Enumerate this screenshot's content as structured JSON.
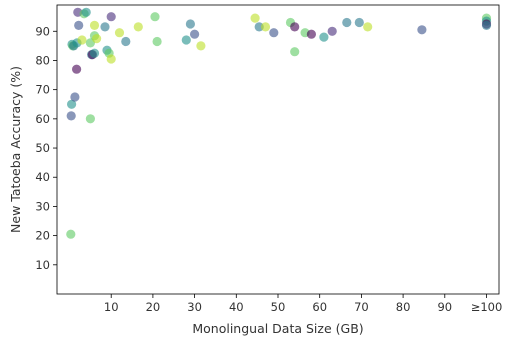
{
  "chart_data": {
    "type": "scatter",
    "title": "",
    "xlabel": "Monolingual Data Size (GB)",
    "ylabel": "New Tatoeba Accuracy (%)",
    "xlim": [
      -3,
      103
    ],
    "ylim": [
      0,
      99
    ],
    "grid": false,
    "x_ticks": [
      {
        "value": 10,
        "label": "10"
      },
      {
        "value": 20,
        "label": "20"
      },
      {
        "value": 30,
        "label": "30"
      },
      {
        "value": 40,
        "label": "40"
      },
      {
        "value": 50,
        "label": "50"
      },
      {
        "value": 60,
        "label": "60"
      },
      {
        "value": 70,
        "label": "70"
      },
      {
        "value": 80,
        "label": "80"
      },
      {
        "value": 90,
        "label": "90"
      },
      {
        "value": 100,
        "label": "≥100"
      }
    ],
    "y_ticks": [
      {
        "value": 10,
        "label": "10"
      },
      {
        "value": 20,
        "label": "20"
      },
      {
        "value": 30,
        "label": "30"
      },
      {
        "value": 40,
        "label": "40"
      },
      {
        "value": 50,
        "label": "50"
      },
      {
        "value": 60,
        "label": "60"
      },
      {
        "value": 70,
        "label": "70"
      },
      {
        "value": 80,
        "label": "80"
      },
      {
        "value": 90,
        "label": "90"
      }
    ],
    "marker_opacity": 0.6,
    "colors": {
      "purple": "#440154",
      "blue": "#2a788e",
      "teal": "#21918c",
      "green": "#5ec962",
      "yellow": "#bddf26"
    },
    "points": [
      {
        "x": 0.3,
        "y": 20.5,
        "color": "#5ec962"
      },
      {
        "x": 0.4,
        "y": 61.0,
        "color": "#3b528b"
      },
      {
        "x": 0.5,
        "y": 65.0,
        "color": "#21918c"
      },
      {
        "x": 0.6,
        "y": 85.5,
        "color": "#21918c"
      },
      {
        "x": 0.8,
        "y": 85.0,
        "color": "#5ec962"
      },
      {
        "x": 1.0,
        "y": 85.0,
        "color": "#2a788e"
      },
      {
        "x": 1.3,
        "y": 67.5,
        "color": "#3b528b"
      },
      {
        "x": 1.7,
        "y": 77.0,
        "color": "#440154"
      },
      {
        "x": 1.8,
        "y": 86.0,
        "color": "#21918c"
      },
      {
        "x": 2.0,
        "y": 96.5,
        "color": "#472d7b"
      },
      {
        "x": 2.2,
        "y": 92.0,
        "color": "#3b528b"
      },
      {
        "x": 3.0,
        "y": 87.0,
        "color": "#bddf26"
      },
      {
        "x": 3.5,
        "y": 96.0,
        "color": "#5ec962"
      },
      {
        "x": 4.0,
        "y": 96.5,
        "color": "#21918c"
      },
      {
        "x": 5.0,
        "y": 86.0,
        "color": "#5ec962"
      },
      {
        "x": 5.0,
        "y": 60.0,
        "color": "#5ec962"
      },
      {
        "x": 5.3,
        "y": 82.0,
        "color": "#2a788e"
      },
      {
        "x": 5.5,
        "y": 82.0,
        "color": "#440154"
      },
      {
        "x": 6.0,
        "y": 82.5,
        "color": "#21918c"
      },
      {
        "x": 6.0,
        "y": 88.5,
        "color": "#5ec962"
      },
      {
        "x": 6.0,
        "y": 92.0,
        "color": "#bddf26"
      },
      {
        "x": 6.5,
        "y": 87.5,
        "color": "#bddf26"
      },
      {
        "x": 8.5,
        "y": 91.5,
        "color": "#2a788e"
      },
      {
        "x": 9.0,
        "y": 83.5,
        "color": "#21918c"
      },
      {
        "x": 9.5,
        "y": 82.5,
        "color": "#5ec962"
      },
      {
        "x": 10.0,
        "y": 80.5,
        "color": "#bddf26"
      },
      {
        "x": 10.0,
        "y": 95.0,
        "color": "#472d7b"
      },
      {
        "x": 12.0,
        "y": 89.5,
        "color": "#bddf26"
      },
      {
        "x": 13.5,
        "y": 86.5,
        "color": "#2a788e"
      },
      {
        "x": 16.5,
        "y": 91.5,
        "color": "#bddf26"
      },
      {
        "x": 20.5,
        "y": 95.0,
        "color": "#5ec962"
      },
      {
        "x": 21.0,
        "y": 86.5,
        "color": "#5ec962"
      },
      {
        "x": 28.0,
        "y": 87.0,
        "color": "#21918c"
      },
      {
        "x": 29.0,
        "y": 92.5,
        "color": "#2a788e"
      },
      {
        "x": 30.0,
        "y": 89.0,
        "color": "#3b528b"
      },
      {
        "x": 31.5,
        "y": 85.0,
        "color": "#bddf26"
      },
      {
        "x": 44.5,
        "y": 94.5,
        "color": "#bddf26"
      },
      {
        "x": 45.5,
        "y": 91.5,
        "color": "#2a788e"
      },
      {
        "x": 47.0,
        "y": 91.5,
        "color": "#bddf26"
      },
      {
        "x": 49.0,
        "y": 89.5,
        "color": "#3b528b"
      },
      {
        "x": 53.0,
        "y": 93.0,
        "color": "#5ec962"
      },
      {
        "x": 54.0,
        "y": 83.0,
        "color": "#5ec962"
      },
      {
        "x": 54.0,
        "y": 91.5,
        "color": "#440154"
      },
      {
        "x": 56.5,
        "y": 89.5,
        "color": "#5ec962"
      },
      {
        "x": 58.0,
        "y": 89.0,
        "color": "#440154"
      },
      {
        "x": 61.0,
        "y": 88.0,
        "color": "#21918c"
      },
      {
        "x": 63.0,
        "y": 90.0,
        "color": "#472d7b"
      },
      {
        "x": 66.5,
        "y": 93.0,
        "color": "#2a788e"
      },
      {
        "x": 69.5,
        "y": 93.0,
        "color": "#2a788e"
      },
      {
        "x": 71.5,
        "y": 91.5,
        "color": "#bddf26"
      },
      {
        "x": 84.5,
        "y": 90.5,
        "color": "#3b528b"
      },
      {
        "x": 100.0,
        "y": 94.5,
        "color": "#5ec962"
      },
      {
        "x": 100.0,
        "y": 93.5,
        "color": "#21918c"
      },
      {
        "x": 100.0,
        "y": 92.5,
        "color": "#440154"
      },
      {
        "x": 100.0,
        "y": 92.0,
        "color": "#2a788e"
      }
    ]
  }
}
